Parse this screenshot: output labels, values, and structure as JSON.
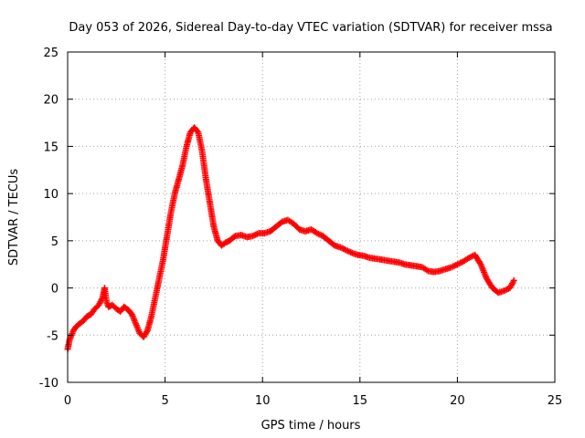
{
  "chart_data": {
    "type": "scatter",
    "title": "Day 053 of 2026, Sidereal Day-to-day VTEC variation (SDTVAR) for receiver mssa",
    "xlabel": "GPS time / hours",
    "ylabel": "SDTVAR / TECUs",
    "xlim": [
      0,
      25
    ],
    "ylim": [
      -10,
      25
    ],
    "xticks": [
      0,
      5,
      10,
      15,
      20,
      25
    ],
    "yticks": [
      -10,
      -5,
      0,
      5,
      10,
      15,
      20,
      25
    ],
    "xtick_labels": [
      "0",
      "5",
      "10",
      "15",
      "20",
      "25"
    ],
    "ytick_labels": [
      "-10",
      "-5",
      "0",
      "5",
      "10",
      "15",
      "20",
      "25"
    ],
    "grid": true,
    "marker": "plus",
    "color": "#ff0000",
    "series": [
      {
        "name": "SDTVAR",
        "x": [
          0.0,
          0.1,
          0.2,
          0.3,
          0.4,
          0.5,
          0.6,
          0.8,
          1.0,
          1.2,
          1.4,
          1.6,
          1.8,
          1.9,
          2.0,
          2.1,
          2.3,
          2.5,
          2.7,
          2.9,
          3.1,
          3.3,
          3.5,
          3.7,
          3.9,
          4.1,
          4.3,
          4.5,
          4.7,
          4.9,
          5.1,
          5.3,
          5.5,
          5.7,
          5.9,
          6.1,
          6.3,
          6.5,
          6.7,
          6.9,
          7.1,
          7.3,
          7.5,
          7.7,
          7.9,
          8.1,
          8.3,
          8.6,
          8.9,
          9.2,
          9.5,
          9.8,
          10.1,
          10.4,
          10.7,
          11.0,
          11.3,
          11.6,
          11.9,
          12.2,
          12.5,
          12.8,
          13.1,
          13.4,
          13.7,
          14.0,
          14.3,
          14.6,
          14.9,
          15.2,
          15.5,
          15.8,
          16.1,
          16.4,
          16.7,
          17.0,
          17.3,
          17.6,
          17.9,
          18.2,
          18.5,
          18.8,
          19.1,
          19.4,
          19.7,
          20.0,
          20.3,
          20.6,
          20.9,
          21.2,
          21.5,
          21.8,
          22.1,
          22.4,
          22.7,
          22.9
        ],
        "y": [
          -6.5,
          -5.5,
          -5.0,
          -4.5,
          -4.2,
          -4.0,
          -3.8,
          -3.5,
          -3.0,
          -2.8,
          -2.2,
          -1.8,
          -1.0,
          0.0,
          -1.5,
          -2.0,
          -1.8,
          -2.2,
          -2.5,
          -2.0,
          -2.3,
          -2.8,
          -3.8,
          -4.8,
          -5.2,
          -4.5,
          -3.0,
          -1.0,
          1.0,
          3.0,
          5.5,
          8.0,
          10.0,
          11.5,
          13.0,
          15.0,
          16.5,
          17.0,
          16.5,
          14.5,
          11.5,
          9.0,
          6.5,
          5.0,
          4.5,
          4.8,
          5.0,
          5.5,
          5.6,
          5.4,
          5.5,
          5.8,
          5.8,
          6.0,
          6.5,
          7.0,
          7.2,
          6.8,
          6.2,
          6.0,
          6.2,
          5.8,
          5.5,
          5.0,
          4.5,
          4.3,
          4.0,
          3.7,
          3.5,
          3.4,
          3.2,
          3.1,
          3.0,
          2.9,
          2.8,
          2.7,
          2.5,
          2.4,
          2.3,
          2.2,
          1.8,
          1.7,
          1.8,
          2.0,
          2.2,
          2.5,
          2.8,
          3.2,
          3.5,
          2.5,
          1.0,
          0.0,
          -0.5,
          -0.3,
          0.0,
          0.8
        ]
      }
    ]
  }
}
